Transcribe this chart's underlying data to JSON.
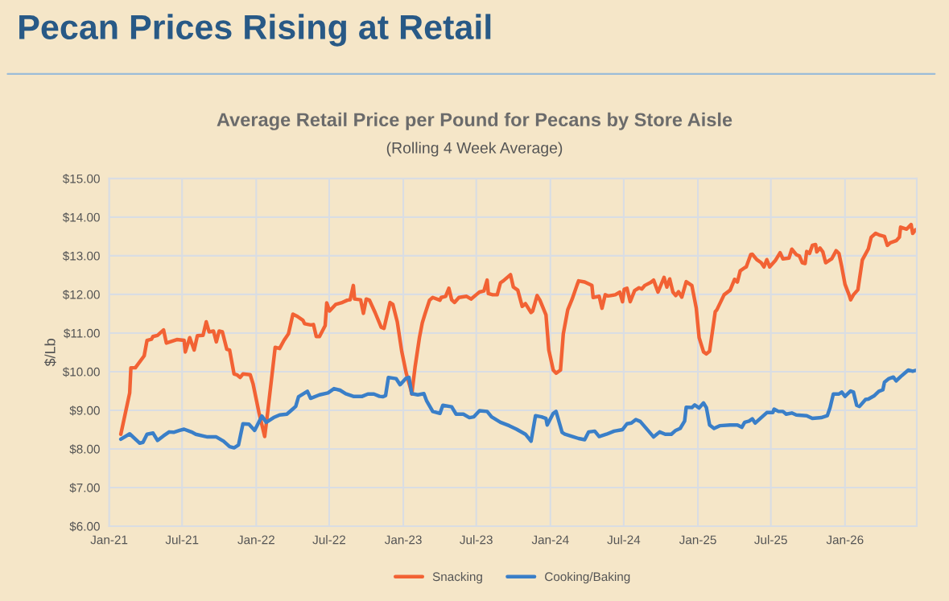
{
  "chart_data": {
    "type": "line",
    "title": "Average Retail Price per Pound for Pecans by Store Aisle",
    "subtitle": "(Rolling 4 Week Average)",
    "ylabel": "$/Lb",
    "annotations": [
      "Pecan Prices Rising at Retail"
    ],
    "xlim": [
      "2021-01-01",
      "2026-06-28"
    ],
    "xticks": [
      {
        "value": "2021-01-01",
        "label": "Jan-21"
      },
      {
        "value": "2021-07-01",
        "label": "Jul-21"
      },
      {
        "value": "2022-01-01",
        "label": "Jan-22"
      },
      {
        "value": "2022-07-01",
        "label": "Jul-22"
      },
      {
        "value": "2023-01-01",
        "label": "Jan-23"
      },
      {
        "value": "2023-07-01",
        "label": "Jul-23"
      },
      {
        "value": "2024-01-01",
        "label": "Jan-24"
      },
      {
        "value": "2024-07-01",
        "label": "Jul-24"
      },
      {
        "value": "2025-01-01",
        "label": "Jan-25"
      },
      {
        "value": "2025-07-01",
        "label": "Jul-25"
      },
      {
        "value": "2026-01-01",
        "label": "Jan-26"
      }
    ],
    "ylim": [
      6,
      15
    ],
    "yticks": [
      {
        "value": 6,
        "label": "$6.00"
      },
      {
        "value": 7,
        "label": "$7.00"
      },
      {
        "value": 8,
        "label": "$8.00"
      },
      {
        "value": 9,
        "label": "$9.00"
      },
      {
        "value": 10,
        "label": "$10.00"
      },
      {
        "value": 11,
        "label": "$11.00"
      },
      {
        "value": 12,
        "label": "$12.00"
      },
      {
        "value": 13,
        "label": "$13.00"
      },
      {
        "value": 14,
        "label": "$14.00"
      },
      {
        "value": 15,
        "label": "$15.00"
      }
    ],
    "grid": true,
    "legend": "bottom",
    "line_style": "solid",
    "series": [
      {
        "name": "Snacking",
        "color": "#f26234",
        "x": [
          "2021-01-30",
          "2021-02-21",
          "2021-02-24",
          "2021-03-07",
          "2021-03-29",
          "2021-04-05",
          "2021-04-16",
          "2021-04-20",
          "2021-05-01",
          "2021-05-16",
          "2021-05-23",
          "2021-06-18",
          "2021-07-06",
          "2021-07-09",
          "2021-07-20",
          "2021-07-31",
          "2021-08-08",
          "2021-08-22",
          "2021-08-30",
          "2021-09-06",
          "2021-09-17",
          "2021-09-24",
          "2021-10-01",
          "2021-10-09",
          "2021-10-20",
          "2021-10-27",
          "2021-11-07",
          "2021-11-14",
          "2021-11-22",
          "2021-11-29",
          "2021-12-17",
          "2021-12-24",
          "2022-01-08",
          "2022-01-22",
          "2022-01-30",
          "2022-02-17",
          "2022-02-28",
          "2022-03-11",
          "2022-03-22",
          "2022-04-02",
          "2022-04-13",
          "2022-04-27",
          "2022-05-01",
          "2022-05-16",
          "2022-05-23",
          "2022-05-30",
          "2022-06-07",
          "2022-06-21",
          "2022-06-25",
          "2022-07-02",
          "2022-07-17",
          "2022-07-31",
          "2022-08-15",
          "2022-08-22",
          "2022-08-30",
          "2022-09-02",
          "2022-09-17",
          "2022-09-24",
          "2022-10-01",
          "2022-10-09",
          "2022-10-23",
          "2022-11-07",
          "2022-11-14",
          "2022-11-29",
          "2022-12-06",
          "2022-12-17",
          "2022-12-28",
          "2023-01-08",
          "2023-01-19",
          "2023-01-22",
          "2023-01-30",
          "2023-02-10",
          "2023-02-17",
          "2023-02-24",
          "2023-03-07",
          "2023-03-15",
          "2023-04-02",
          "2023-04-05",
          "2023-04-16",
          "2023-04-24",
          "2023-05-01",
          "2023-05-08",
          "2023-05-19",
          "2023-06-07",
          "2023-06-18",
          "2023-07-02",
          "2023-07-09",
          "2023-07-20",
          "2023-07-28",
          "2023-07-31",
          "2023-08-11",
          "2023-08-22",
          "2023-08-30",
          "2023-09-06",
          "2023-09-24",
          "2023-10-01",
          "2023-10-12",
          "2023-10-23",
          "2023-10-31",
          "2023-11-14",
          "2023-11-18",
          "2023-11-29",
          "2023-12-06",
          "2023-12-21",
          "2023-12-28",
          "2024-01-08",
          "2024-01-15",
          "2024-01-26",
          "2024-02-02",
          "2024-02-13",
          "2024-02-24",
          "2024-03-07",
          "2024-03-11",
          "2024-03-26",
          "2024-04-13",
          "2024-04-16",
          "2024-05-01",
          "2024-05-08",
          "2024-05-16",
          "2024-05-23",
          "2024-06-10",
          "2024-06-21",
          "2024-06-28",
          "2024-07-02",
          "2024-07-09",
          "2024-07-17",
          "2024-07-28",
          "2024-08-08",
          "2024-08-15",
          "2024-08-22",
          "2024-09-06",
          "2024-09-13",
          "2024-09-24",
          "2024-10-09",
          "2024-10-16",
          "2024-10-23",
          "2024-10-31",
          "2024-11-07",
          "2024-11-14",
          "2024-11-22",
          "2024-12-03",
          "2024-12-17",
          "2024-12-28",
          "2025-01-04",
          "2025-01-15",
          "2025-01-22",
          "2025-01-30",
          "2025-02-13",
          "2025-02-17",
          "2025-03-07",
          "2025-03-22",
          "2025-04-02",
          "2025-04-09",
          "2025-04-16",
          "2025-04-27",
          "2025-05-01",
          "2025-05-12",
          "2025-05-16",
          "2025-05-27",
          "2025-06-07",
          "2025-06-14",
          "2025-06-21",
          "2025-06-28",
          "2025-07-13",
          "2025-07-24",
          "2025-07-31",
          "2025-08-15",
          "2025-08-22",
          "2025-09-02",
          "2025-09-10",
          "2025-09-17",
          "2025-09-24",
          "2025-09-28",
          "2025-10-05",
          "2025-10-12",
          "2025-10-20",
          "2025-10-23",
          "2025-10-31",
          "2025-11-07",
          "2025-11-14",
          "2025-11-29",
          "2025-12-10",
          "2025-12-17",
          "2025-12-24",
          "2026-01-01",
          "2026-01-11",
          "2026-01-15",
          "2026-01-22",
          "2026-02-02",
          "2026-02-13",
          "2026-02-28",
          "2026-03-07",
          "2026-03-18",
          "2026-03-29",
          "2026-04-09",
          "2026-04-16",
          "2026-04-24",
          "2026-05-08",
          "2026-05-16",
          "2026-05-19",
          "2026-06-03",
          "2026-06-14",
          "2026-06-18",
          "2026-06-25"
        ],
        "values": [
          8.38,
          9.45,
          10.1,
          10.1,
          10.41,
          10.81,
          10.84,
          10.91,
          10.94,
          11.08,
          10.74,
          10.83,
          10.81,
          10.51,
          10.88,
          10.56,
          10.93,
          10.94,
          11.29,
          11.03,
          11.05,
          10.77,
          11.05,
          11.03,
          10.58,
          10.56,
          9.94,
          9.92,
          9.85,
          9.94,
          9.92,
          9.69,
          8.93,
          8.32,
          9.0,
          10.63,
          10.6,
          10.81,
          10.98,
          11.49,
          11.43,
          11.33,
          11.24,
          11.21,
          11.22,
          10.91,
          10.91,
          11.19,
          11.78,
          11.57,
          11.74,
          11.78,
          11.85,
          11.86,
          12.23,
          11.88,
          11.86,
          11.51,
          11.88,
          11.85,
          11.53,
          11.15,
          11.12,
          11.79,
          11.74,
          11.29,
          10.53,
          9.97,
          9.56,
          9.42,
          10.11,
          10.88,
          11.26,
          11.5,
          11.85,
          11.92,
          11.85,
          11.92,
          11.95,
          12.16,
          11.86,
          11.79,
          11.92,
          11.95,
          11.88,
          12.0,
          12.06,
          12.09,
          12.37,
          12.02,
          11.99,
          11.99,
          12.3,
          12.35,
          12.51,
          12.19,
          12.11,
          11.69,
          11.76,
          11.53,
          11.57,
          11.97,
          11.85,
          11.47,
          10.56,
          10.04,
          9.96,
          10.04,
          10.98,
          11.6,
          11.88,
          12.24,
          12.35,
          12.32,
          12.23,
          11.92,
          11.95,
          11.64,
          11.99,
          11.96,
          11.99,
          12.06,
          11.81,
          12.13,
          12.16,
          11.81,
          12.1,
          12.17,
          12.14,
          12.23,
          12.31,
          12.37,
          12.06,
          12.44,
          12.19,
          12.4,
          12.06,
          11.97,
          12.07,
          11.93,
          12.33,
          12.23,
          11.64,
          10.88,
          10.51,
          10.46,
          10.53,
          11.55,
          11.6,
          11.99,
          12.11,
          12.39,
          12.32,
          12.61,
          12.69,
          12.71,
          13.03,
          13.04,
          12.9,
          12.82,
          12.71,
          12.9,
          12.71,
          12.89,
          13.08,
          12.92,
          12.94,
          13.17,
          13.03,
          12.99,
          12.82,
          12.8,
          13.11,
          13.06,
          13.27,
          13.29,
          13.1,
          13.2,
          13.1,
          12.82,
          12.92,
          13.13,
          13.06,
          12.71,
          12.26,
          11.99,
          11.86,
          11.99,
          12.12,
          12.89,
          13.18,
          13.48,
          13.58,
          13.53,
          13.5,
          13.27,
          13.34,
          13.39,
          13.48,
          13.74,
          13.69,
          13.81,
          13.58,
          13.67
        ]
      },
      {
        "name": "Cooking/Baking",
        "color": "#3a7fc8",
        "x": [
          "2021-01-30",
          "2021-02-21",
          "2021-03-18",
          "2021-03-26",
          "2021-04-05",
          "2021-04-20",
          "2021-05-01",
          "2021-05-16",
          "2021-05-30",
          "2021-06-10",
          "2021-06-25",
          "2021-07-06",
          "2021-07-24",
          "2021-08-04",
          "2021-09-02",
          "2021-09-24",
          "2021-10-12",
          "2021-10-27",
          "2021-11-07",
          "2021-11-18",
          "2021-11-29",
          "2021-12-14",
          "2021-12-28",
          "2022-01-15",
          "2022-01-26",
          "2022-02-13",
          "2022-02-28",
          "2022-03-18",
          "2022-03-29",
          "2022-04-09",
          "2022-04-16",
          "2022-05-08",
          "2022-05-16",
          "2022-06-07",
          "2022-06-28",
          "2022-07-13",
          "2022-07-28",
          "2022-08-11",
          "2022-08-30",
          "2022-09-21",
          "2022-10-05",
          "2022-10-20",
          "2022-11-03",
          "2022-11-11",
          "2022-11-18",
          "2022-11-25",
          "2022-12-14",
          "2022-12-24",
          "2023-01-08",
          "2023-01-15",
          "2023-01-22",
          "2023-02-06",
          "2023-02-21",
          "2023-02-28",
          "2023-03-15",
          "2023-04-02",
          "2023-04-09",
          "2023-05-01",
          "2023-05-12",
          "2023-05-30",
          "2023-06-14",
          "2023-06-25",
          "2023-07-09",
          "2023-07-28",
          "2023-08-08",
          "2023-08-30",
          "2023-09-21",
          "2023-10-09",
          "2023-10-31",
          "2023-11-14",
          "2023-11-25",
          "2023-12-10",
          "2023-12-21",
          "2023-12-24",
          "2024-01-08",
          "2024-01-15",
          "2024-01-30",
          "2024-02-06",
          "2024-02-28",
          "2024-03-11",
          "2024-03-26",
          "2024-04-05",
          "2024-04-20",
          "2024-05-01",
          "2024-05-19",
          "2024-06-07",
          "2024-06-28",
          "2024-07-09",
          "2024-07-20",
          "2024-07-31",
          "2024-08-11",
          "2024-08-30",
          "2024-09-13",
          "2024-09-28",
          "2024-10-12",
          "2024-10-27",
          "2024-11-07",
          "2024-11-18",
          "2024-11-29",
          "2024-12-03",
          "2024-12-17",
          "2024-12-24",
          "2025-01-04",
          "2025-01-15",
          "2025-01-22",
          "2025-01-30",
          "2025-02-10",
          "2025-02-24",
          "2025-03-22",
          "2025-04-09",
          "2025-04-20",
          "2025-04-27",
          "2025-05-08",
          "2025-05-16",
          "2025-05-23",
          "2025-06-07",
          "2025-06-21",
          "2025-07-06",
          "2025-07-09",
          "2025-07-20",
          "2025-07-31",
          "2025-08-08",
          "2025-08-22",
          "2025-09-02",
          "2025-09-28",
          "2025-10-12",
          "2025-11-03",
          "2025-11-18",
          "2025-11-25",
          "2025-12-03",
          "2025-12-17",
          "2025-12-24",
          "2026-01-01",
          "2026-01-15",
          "2026-01-22",
          "2026-01-30",
          "2026-02-06",
          "2026-02-21",
          "2026-02-28",
          "2026-03-15",
          "2026-03-26",
          "2026-04-05",
          "2026-04-09",
          "2026-04-20",
          "2026-05-01",
          "2026-05-08",
          "2026-05-19",
          "2026-06-07",
          "2026-06-18",
          "2026-06-28"
        ],
        "values": [
          8.25,
          8.39,
          8.15,
          8.17,
          8.38,
          8.41,
          8.22,
          8.34,
          8.44,
          8.43,
          8.48,
          8.51,
          8.44,
          8.38,
          8.31,
          8.31,
          8.2,
          8.06,
          8.03,
          8.1,
          8.65,
          8.64,
          8.48,
          8.85,
          8.69,
          8.81,
          8.88,
          8.9,
          9.0,
          9.1,
          9.35,
          9.49,
          9.31,
          9.4,
          9.45,
          9.56,
          9.52,
          9.43,
          9.36,
          9.36,
          9.42,
          9.42,
          9.36,
          9.35,
          9.38,
          9.85,
          9.82,
          9.66,
          9.83,
          9.85,
          9.43,
          9.4,
          9.43,
          9.24,
          8.97,
          8.92,
          9.13,
          9.09,
          8.9,
          8.9,
          8.81,
          8.83,
          8.99,
          8.97,
          8.83,
          8.69,
          8.6,
          8.51,
          8.38,
          8.2,
          8.86,
          8.83,
          8.79,
          8.62,
          8.92,
          8.97,
          8.43,
          8.38,
          8.31,
          8.27,
          8.24,
          8.44,
          8.46,
          8.32,
          8.38,
          8.46,
          8.5,
          8.65,
          8.67,
          8.76,
          8.71,
          8.48,
          8.31,
          8.44,
          8.38,
          8.38,
          8.48,
          8.53,
          8.72,
          9.08,
          9.07,
          9.14,
          9.06,
          9.19,
          9.07,
          8.62,
          8.53,
          8.6,
          8.62,
          8.62,
          8.56,
          8.69,
          8.72,
          8.78,
          8.67,
          8.81,
          8.94,
          8.94,
          9.03,
          8.97,
          8.97,
          8.9,
          8.93,
          8.88,
          8.86,
          8.79,
          8.81,
          8.86,
          9.07,
          9.42,
          9.42,
          9.47,
          9.36,
          9.5,
          9.47,
          9.13,
          9.1,
          9.28,
          9.29,
          9.38,
          9.49,
          9.53,
          9.73,
          9.82,
          9.86,
          9.76,
          9.87,
          10.04,
          10.01,
          10.04
        ]
      }
    ]
  }
}
